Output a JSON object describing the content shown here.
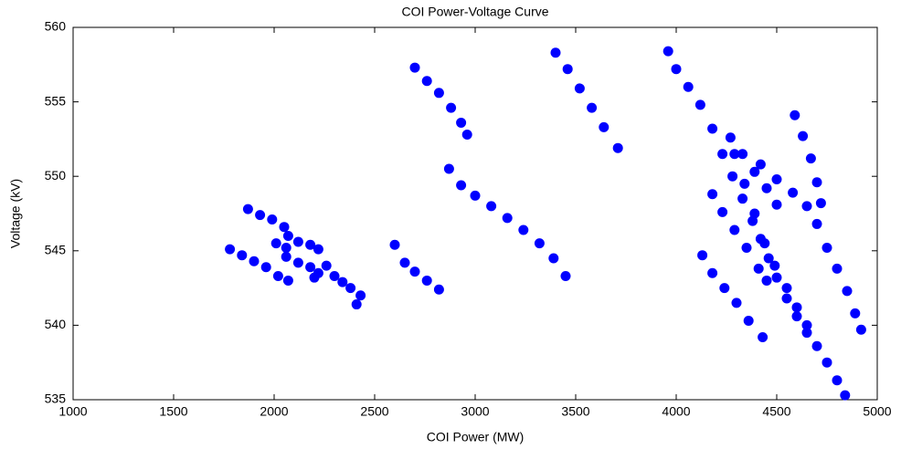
{
  "chart_data": {
    "type": "scatter",
    "title": "COI Power-Voltage Curve",
    "x_label": "COI Power (MW)",
    "y_label": "Voltage (kV)",
    "color": "#0000ff",
    "grid": false,
    "xlim": [
      1000,
      5000
    ],
    "xticks": [
      1000,
      1500,
      2000,
      2500,
      3000,
      3500,
      4000,
      4500,
      5000
    ],
    "ylim": [
      535,
      560
    ],
    "yticks": [
      535,
      540,
      545,
      550,
      555,
      560
    ],
    "x": [
      1780,
      1840,
      1900,
      1960,
      2020,
      2070,
      1870,
      1930,
      1990,
      2050,
      2070,
      2010,
      2060,
      2120,
      2180,
      2220,
      2060,
      2120,
      2180,
      2220,
      2260,
      2300,
      2340,
      2380,
      2430,
      2410,
      2200,
      2600,
      2650,
      2700,
      2760,
      2820,
      2700,
      2760,
      2820,
      2880,
      2930,
      2960,
      2870,
      2930,
      3000,
      3080,
      3160,
      3240,
      3320,
      3390,
      3450,
      3400,
      3460,
      3520,
      3580,
      3640,
      3710,
      3960,
      4000,
      4060,
      4120,
      4180,
      4230,
      4280,
      4330,
      4380,
      4420,
      4460,
      4500,
      4550,
      4600,
      4650,
      4700,
      4750,
      4800,
      4840,
      4130,
      4180,
      4240,
      4300,
      4360,
      4430,
      4180,
      4230,
      4290,
      4350,
      4410,
      4450,
      4270,
      4330,
      4390,
      4450,
      4500,
      4590,
      4630,
      4670,
      4700,
      4720,
      4420,
      4500,
      4580,
      4650,
      4700,
      4750,
      4800,
      4850,
      4890,
      4920,
      4290,
      4340,
      4390,
      4440,
      4490,
      4550,
      4600,
      4650
    ],
    "y": [
      545.1,
      544.7,
      544.3,
      543.9,
      543.3,
      543.0,
      547.8,
      547.4,
      547.1,
      546.6,
      546.0,
      545.5,
      545.2,
      545.6,
      545.4,
      545.1,
      544.6,
      544.2,
      543.9,
      543.5,
      544.0,
      543.3,
      542.9,
      542.5,
      542.0,
      541.4,
      543.2,
      545.4,
      544.2,
      543.6,
      543.0,
      542.4,
      557.3,
      556.4,
      555.6,
      554.6,
      553.6,
      552.8,
      550.5,
      549.4,
      548.7,
      548.0,
      547.2,
      546.4,
      545.5,
      544.5,
      543.3,
      558.3,
      557.2,
      555.9,
      554.6,
      553.3,
      551.9,
      558.4,
      557.2,
      556.0,
      554.8,
      553.2,
      551.5,
      550.0,
      548.5,
      547.0,
      545.8,
      544.5,
      543.2,
      541.8,
      540.6,
      539.5,
      538.6,
      537.5,
      536.3,
      535.3,
      544.7,
      543.5,
      542.5,
      541.5,
      540.3,
      539.2,
      548.8,
      547.6,
      546.4,
      545.2,
      543.8,
      543.0,
      552.6,
      551.5,
      550.3,
      549.2,
      548.1,
      554.1,
      552.7,
      551.2,
      549.6,
      548.2,
      550.8,
      549.8,
      548.9,
      548.0,
      546.8,
      545.2,
      543.8,
      542.3,
      540.8,
      539.7,
      551.5,
      549.5,
      547.5,
      545.5,
      544.0,
      542.5,
      541.2,
      540.0
    ]
  }
}
